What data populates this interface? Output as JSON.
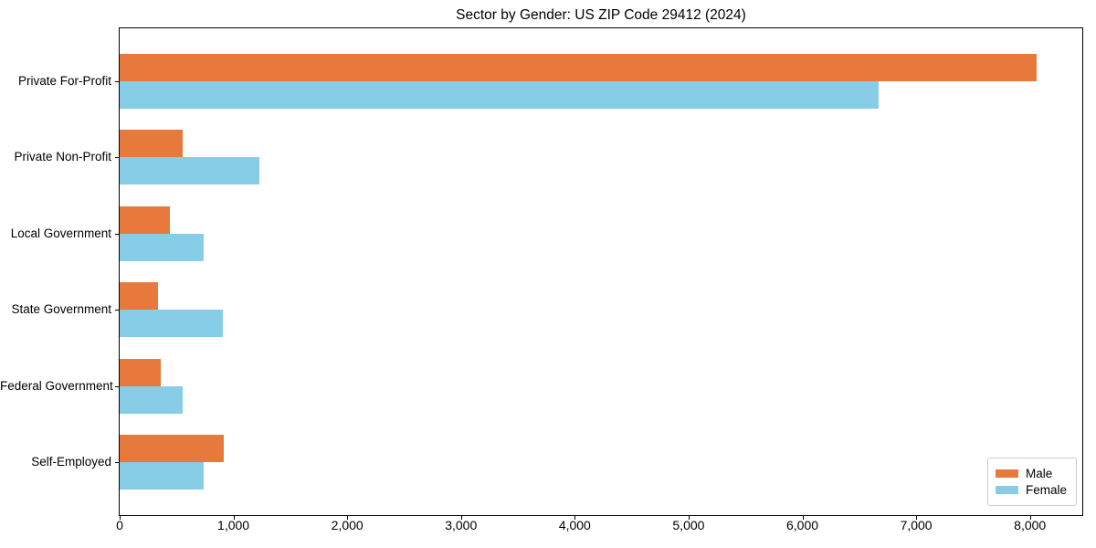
{
  "figure": {
    "background": "#FFFFFF",
    "axis_color": "#000000",
    "text_color": "#000000",
    "legend_border_color": "#CCCCCC"
  },
  "chart_data": {
    "type": "bar",
    "orientation": "horizontal",
    "title": "Sector by Gender: US ZIP Code 29412 (2024)",
    "categories": [
      "Private For-Profit",
      "Private Non-Profit",
      "Local Government",
      "State Government",
      "Federal Government",
      "Self-Employed"
    ],
    "series": [
      {
        "name": "Male",
        "color": "#E8793C",
        "values": [
          8060,
          550,
          440,
          335,
          360,
          915
        ]
      },
      {
        "name": "Female",
        "color": "#87CDE8",
        "values": [
          6670,
          1230,
          735,
          905,
          555,
          735
        ]
      }
    ],
    "xlabel": "",
    "ylabel": "",
    "xlim": [
      0,
      8460
    ],
    "xticks": [
      0,
      1000,
      2000,
      3000,
      4000,
      5000,
      6000,
      7000,
      8000
    ],
    "xtick_labels": [
      "0",
      "1,000",
      "2,000",
      "3,000",
      "4,000",
      "5,000",
      "6,000",
      "7,000",
      "8,000"
    ],
    "grid": false,
    "legend": {
      "position": "lower right",
      "items": [
        "Male",
        "Female"
      ]
    }
  }
}
